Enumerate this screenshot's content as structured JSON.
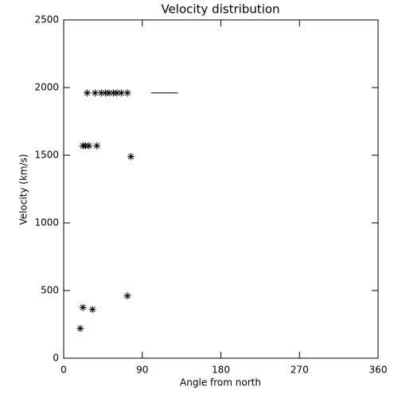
{
  "chart_data": {
    "type": "scatter",
    "title": "Velocity distribution",
    "x_label": "Angle from north",
    "y_label": "Velocity (km/s)",
    "series": [
      {
        "x": [
          27,
          36,
          43,
          48,
          52,
          57,
          61,
          66,
          73,
          22,
          25,
          29,
          38,
          77,
          22,
          33,
          73,
          19
        ],
        "values": [
          1960,
          1960,
          1960,
          1960,
          1960,
          1960,
          1960,
          1960,
          1960,
          1570,
          1570,
          1570,
          1570,
          1490,
          375,
          360,
          460,
          220
        ],
        "marker": "asterisk",
        "color": "#000000"
      },
      {
        "x": [
          100,
          131
        ],
        "values": [
          1960,
          1960
        ],
        "marker": "line",
        "color": "#000000"
      }
    ],
    "xlim": [
      0,
      360
    ],
    "xticks": [
      0,
      90,
      180,
      270,
      360
    ],
    "ylim": [
      0,
      2500
    ],
    "yticks": [
      0,
      500,
      1000,
      1500,
      2000,
      2500
    ]
  }
}
